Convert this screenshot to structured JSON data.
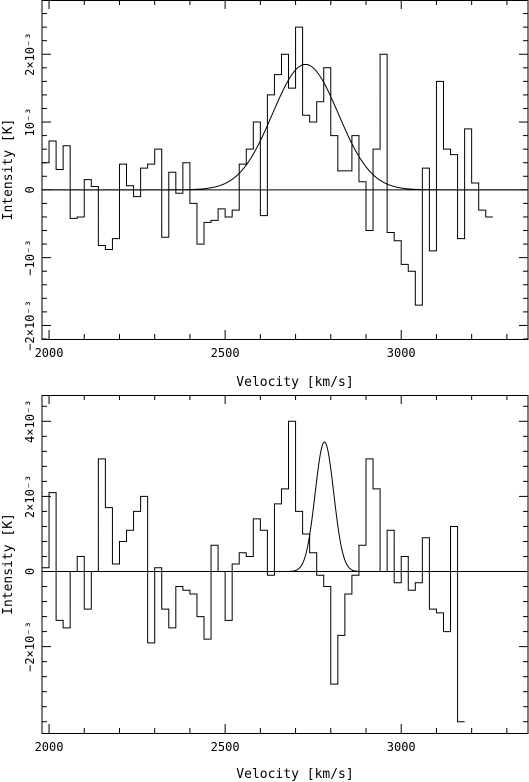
{
  "chart_data": [
    {
      "type": "line",
      "xlabel": "Velocity  [km/s]",
      "ylabel": "Intensity [K]",
      "xlim": [
        1980,
        3360
      ],
      "ylim": [
        -0.0022,
        0.0028
      ],
      "x_ticks": [
        {
          "value": 2000,
          "label": "2000"
        },
        {
          "value": 2500,
          "label": "2500"
        },
        {
          "value": 3000,
          "label": "3000"
        }
      ],
      "y_ticks": [
        {
          "value": -0.002,
          "label": "−2×10⁻³"
        },
        {
          "value": -0.001,
          "label": "−10⁻³"
        },
        {
          "value": 0,
          "label": "0"
        },
        {
          "value": 0.001,
          "label": "10⁻³"
        },
        {
          "value": 0.002,
          "label": "2×10⁻³"
        }
      ],
      "channel_width": 20,
      "spectrum": {
        "x_start": 1980,
        "values": [
          0.0004,
          0.00072,
          0.0003,
          0.00065,
          -0.00042,
          -0.0004,
          0.00015,
          5e-05,
          -0.00082,
          -0.00088,
          -0.00072,
          0.00038,
          6e-05,
          -0.0001,
          0.00032,
          0.00038,
          0.0006,
          -0.0007,
          0.00026,
          -5e-05,
          0.0004,
          -0.0002,
          -0.0008,
          -0.00048,
          -0.00045,
          -0.00028,
          -0.0004,
          -0.0003,
          0.00038,
          0.0006,
          0.001,
          -0.00038,
          0.0014,
          0.0017,
          0.002,
          0.0015,
          0.0024,
          0.0011,
          0.001,
          0.0013,
          0.0018,
          0.0008,
          0.00028,
          0.00028,
          0.0008,
          0.00012,
          -0.0006,
          0.0006,
          0.002,
          -0.00063,
          -0.00075,
          -0.0011,
          -0.0012,
          -0.0017,
          0.00032,
          -0.0009,
          0.0016,
          0.0006,
          0.00052,
          -0.00072,
          0.0009,
          0.0001,
          -0.0003,
          -0.0004
        ],
        "style": "histogram"
      },
      "fit": {
        "style": "gaussian",
        "amplitude": 0.00185,
        "center": 2728,
        "fwhm": 220
      }
    },
    {
      "type": "line",
      "xlabel": "Velocity  [km/s]",
      "ylabel": "Intensity [K]",
      "xlim": [
        1980,
        3360
      ],
      "ylim": [
        -0.0043,
        0.0047
      ],
      "x_ticks": [
        {
          "value": 2000,
          "label": "2000"
        },
        {
          "value": 2500,
          "label": "2500"
        },
        {
          "value": 3000,
          "label": "3000"
        }
      ],
      "y_ticks": [
        {
          "value": -0.002,
          "label": "−2×10⁻³"
        },
        {
          "value": 0,
          "label": "0"
        },
        {
          "value": 0.002,
          "label": "2×10⁻³"
        },
        {
          "value": 0.004,
          "label": "4×10⁻³"
        }
      ],
      "channel_width": 20,
      "spectrum": {
        "x_start": 1980,
        "values": [
          0.0001,
          0.0021,
          -0.0013,
          -0.0015,
          0.0,
          0.0004,
          -0.001,
          0.0,
          0.003,
          0.0017,
          0.0002,
          0.0008,
          0.0011,
          0.0016,
          0.002,
          -0.0019,
          0.0001,
          -0.001,
          -0.0015,
          -0.0004,
          -0.0005,
          -0.0006,
          -0.0012,
          -0.0018,
          0.0007,
          0.0,
          -0.0013,
          0.0002,
          0.0005,
          0.0004,
          0.0014,
          0.0011,
          -0.0001,
          0.0018,
          0.0022,
          0.004,
          0.0016,
          0.001,
          0.0005,
          -0.0001,
          -0.0004,
          -0.003,
          -0.0017,
          -0.0006,
          -0.0001,
          0.0007,
          0.003,
          0.0022,
          0.0,
          0.0011,
          -0.0003,
          0.0004,
          -0.0005,
          -0.0003,
          0.0009,
          -0.001,
          -0.0011,
          -0.0016,
          0.0012,
          -0.004
        ],
        "style": "histogram"
      },
      "fit": {
        "style": "gaussian",
        "amplitude": 0.00345,
        "center": 2782,
        "fwhm": 62
      }
    }
  ]
}
